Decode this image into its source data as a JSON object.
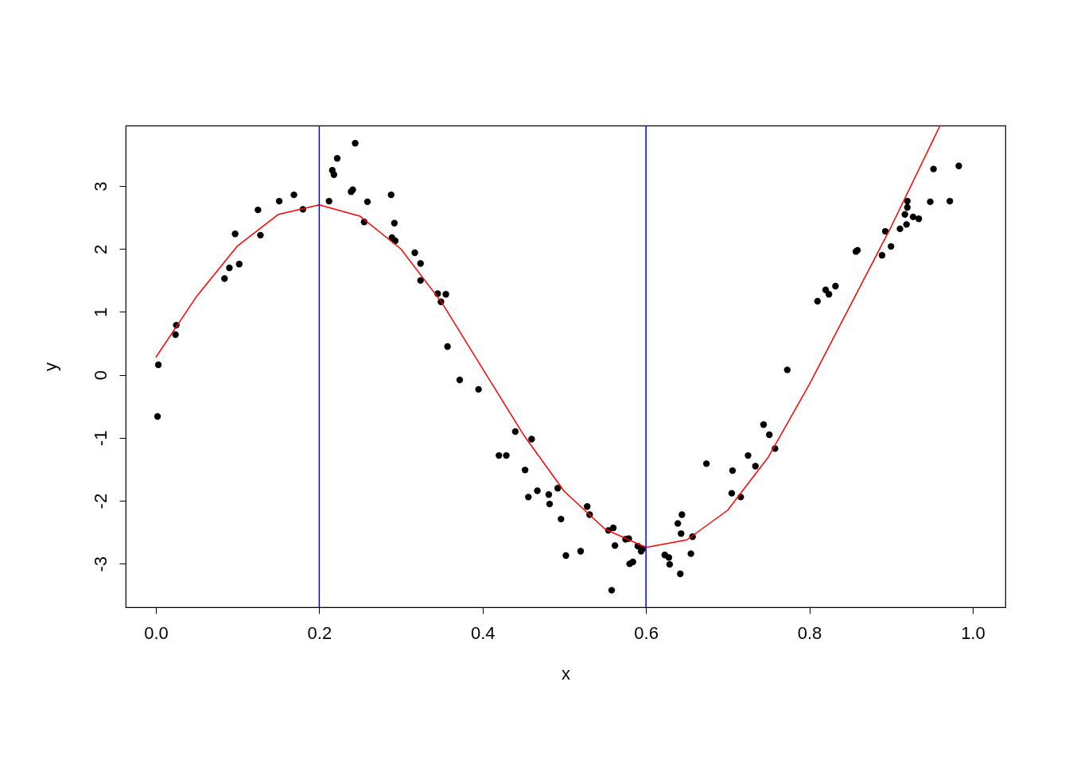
{
  "chart_data": {
    "type": "scatter",
    "xlabel": "x",
    "ylabel": "y",
    "xlim": [
      -0.037,
      1.04
    ],
    "ylim": [
      -3.69,
      3.96
    ],
    "xticks": [
      {
        "value": 0,
        "label": "0.0"
      },
      {
        "value": 0.2,
        "label": "0.2"
      },
      {
        "value": 0.4,
        "label": "0.4"
      },
      {
        "value": 0.6,
        "label": "0.6"
      },
      {
        "value": 0.8,
        "label": "0.8"
      },
      {
        "value": 1,
        "label": "1.0"
      }
    ],
    "yticks": [
      -3,
      -2,
      -1,
      0,
      1,
      2,
      3
    ],
    "grid": false,
    "series": [
      {
        "type": "scatter",
        "color": "#000000",
        "marker": "circle",
        "x": [
          0.002,
          0.003,
          0.024,
          0.025,
          0.084,
          0.09,
          0.097,
          0.102,
          0.125,
          0.128,
          0.151,
          0.169,
          0.18,
          0.212,
          0.216,
          0.218,
          0.222,
          0.239,
          0.241,
          0.244,
          0.255,
          0.259,
          0.288,
          0.289,
          0.292,
          0.293,
          0.317,
          0.324,
          0.324,
          0.345,
          0.349,
          0.355,
          0.357,
          0.372,
          0.395,
          0.42,
          0.429,
          0.44,
          0.452,
          0.456,
          0.46,
          0.467,
          0.481,
          0.482,
          0.492,
          0.496,
          0.502,
          0.52,
          0.528,
          0.531,
          0.554,
          0.558,
          0.56,
          0.562,
          0.575,
          0.579,
          0.58,
          0.584,
          0.59,
          0.594,
          0.596,
          0.623,
          0.628,
          0.629,
          0.639,
          0.642,
          0.643,
          0.644,
          0.655,
          0.657,
          0.674,
          0.705,
          0.706,
          0.716,
          0.725,
          0.734,
          0.744,
          0.751,
          0.758,
          0.773,
          0.81,
          0.82,
          0.824,
          0.832,
          0.857,
          0.859,
          0.889,
          0.893,
          0.9,
          0.911,
          0.917,
          0.919,
          0.92,
          0.92,
          0.927,
          0.934,
          0.948,
          0.952,
          0.972,
          0.983
        ],
        "values": [
          -0.66,
          0.16,
          0.64,
          0.79,
          1.53,
          1.7,
          2.24,
          1.76,
          2.62,
          2.22,
          2.76,
          2.86,
          2.63,
          2.76,
          3.25,
          3.18,
          3.44,
          2.91,
          2.94,
          3.68,
          2.43,
          2.75,
          2.86,
          2.18,
          2.41,
          2.13,
          1.94,
          1.77,
          1.5,
          1.29,
          1.16,
          1.28,
          0.45,
          -0.08,
          -0.23,
          -1.28,
          -1.28,
          -0.9,
          -1.51,
          -1.94,
          -1.02,
          -1.84,
          -1.9,
          -2.05,
          -1.8,
          -2.29,
          -2.87,
          -2.8,
          -2.09,
          -2.22,
          -2.47,
          -3.42,
          -2.43,
          -2.71,
          -2.61,
          -2.6,
          -3.0,
          -2.97,
          -2.72,
          -2.8,
          -2.76,
          -2.86,
          -2.9,
          -3.01,
          -2.36,
          -3.16,
          -2.52,
          -2.22,
          -2.84,
          -2.57,
          -1.41,
          -1.88,
          -1.52,
          -1.94,
          -1.28,
          -1.45,
          -0.79,
          -0.95,
          -1.17,
          0.08,
          1.17,
          1.35,
          1.28,
          1.41,
          1.96,
          1.98,
          1.9,
          2.28,
          2.04,
          2.32,
          2.55,
          2.39,
          2.66,
          2.76,
          2.51,
          2.48,
          2.75,
          3.27,
          2.76,
          3.32
        ]
      },
      {
        "type": "line",
        "color": "#ff0000",
        "x": [
          0,
          0.05,
          0.1,
          0.15,
          0.2,
          0.25,
          0.3,
          0.35,
          0.4,
          0.45,
          0.5,
          0.55,
          0.6,
          0.65,
          0.7,
          0.75,
          0.8,
          0.85,
          0.9,
          0.95,
          0.96
        ],
        "values": [
          0.28,
          1.25,
          2.05,
          2.55,
          2.7,
          2.52,
          2.0,
          1.15,
          0.1,
          -0.95,
          -1.85,
          -2.45,
          -2.74,
          -2.62,
          -2.15,
          -1.3,
          -0.15,
          1.1,
          2.35,
          3.69,
          3.96
        ]
      }
    ],
    "ref_lines": [
      {
        "axis": "x",
        "value": 0.2,
        "color": "#0000ff"
      },
      {
        "axis": "x",
        "value": 0.6,
        "color": "#0000ff"
      }
    ]
  }
}
